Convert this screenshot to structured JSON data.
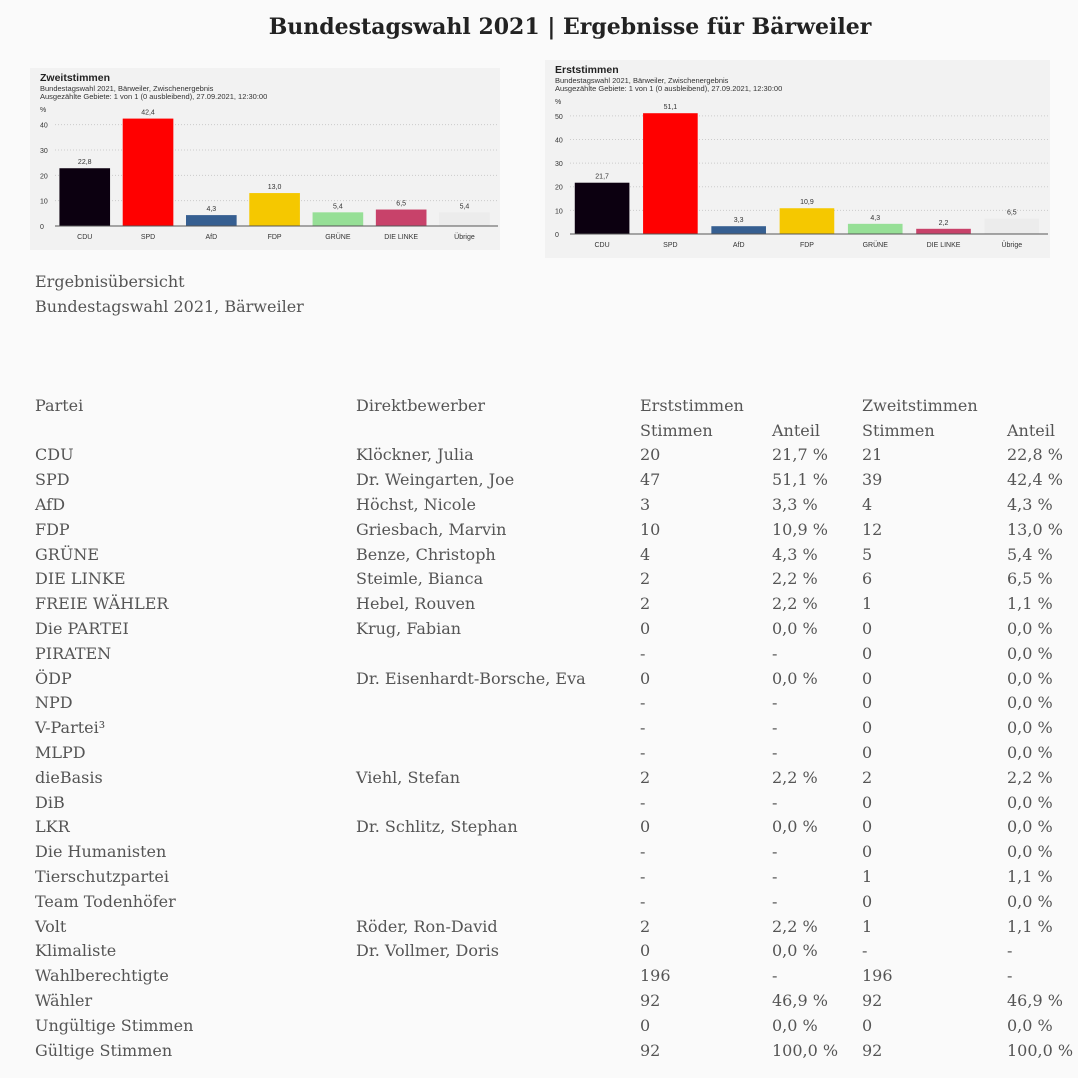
{
  "title": "Bundestagswahl 2021 | Ergebnisse für Bärweiler",
  "chart_data": [
    {
      "type": "bar",
      "title": "Zweitstimmen",
      "subtitle": "Bundestagswahl 2021, Bärweiler, Zwischenergebnis",
      "subtitle2": "Ausgezählte Gebiete: 1 von 1 (0 ausbleibend), 27.09.2021, 12:30:00",
      "ylabel": "%",
      "ylim": [
        0,
        45
      ],
      "yticks": [
        0,
        10,
        20,
        30,
        40
      ],
      "grid": true,
      "categories": [
        "CDU",
        "SPD",
        "AfD",
        "FDP",
        "GRÜNE",
        "DIE LINKE",
        "Übrige"
      ],
      "values": [
        22.8,
        42.4,
        4.3,
        13.0,
        5.4,
        6.5,
        5.4
      ],
      "labels": [
        "22,8",
        "42,4",
        "4,3",
        "13,0",
        "5,4",
        "6,5",
        "5,4"
      ],
      "colors": [
        "#0c0010",
        "#ff0000",
        "#365f91",
        "#f5c800",
        "#96df96",
        "#c8426a",
        "#ececec"
      ]
    },
    {
      "type": "bar",
      "title": "Erststimmen",
      "subtitle": "Bundestagswahl 2021, Bärweiler, Zwischenergebnis",
      "subtitle2": "Ausgezählte Gebiete: 1 von 1 (0 ausbleibend), 27.09.2021, 12:30:00",
      "ylabel": "%",
      "ylim": [
        0,
        55
      ],
      "yticks": [
        0,
        10,
        20,
        30,
        40,
        50
      ],
      "grid": true,
      "categories": [
        "CDU",
        "SPD",
        "AfD",
        "FDP",
        "GRÜNE",
        "DIE LINKE",
        "Übrige"
      ],
      "values": [
        21.7,
        51.1,
        3.3,
        10.9,
        4.3,
        2.2,
        6.5
      ],
      "labels": [
        "21,7",
        "51,1",
        "3,3",
        "10,9",
        "4,3",
        "2,2",
        "6,5"
      ],
      "colors": [
        "#0c0010",
        "#ff0000",
        "#365f91",
        "#f5c800",
        "#96df96",
        "#c8426a",
        "#ececec"
      ]
    }
  ],
  "overview": {
    "line1": "Ergebnisübersicht",
    "line2": "Bundestagswahl 2021, Bärweiler"
  },
  "table": {
    "header1": [
      "Partei",
      "Direktbewerber",
      "Erststimmen",
      "",
      "Zweitstimmen",
      ""
    ],
    "header2": [
      "",
      "",
      "Stimmen",
      "Anteil",
      "Stimmen",
      "Anteil"
    ],
    "rows": [
      [
        "CDU",
        "Klöckner, Julia",
        "20",
        "21,7 %",
        "21",
        "22,8 %"
      ],
      [
        "SPD",
        "Dr. Weingarten, Joe",
        "47",
        "51,1 %",
        "39",
        "42,4 %"
      ],
      [
        "AfD",
        "Höchst, Nicole",
        "3",
        "3,3 %",
        "4",
        "4,3 %"
      ],
      [
        "FDP",
        "Griesbach, Marvin",
        "10",
        "10,9 %",
        "12",
        "13,0 %"
      ],
      [
        "GRÜNE",
        "Benze, Christoph",
        "4",
        "4,3 %",
        "5",
        "5,4 %"
      ],
      [
        "DIE LINKE",
        "Steimle, Bianca",
        "2",
        "2,2 %",
        "6",
        "6,5 %"
      ],
      [
        "FREIE WÄHLER",
        "Hebel, Rouven",
        "2",
        "2,2 %",
        "1",
        "1,1 %"
      ],
      [
        "Die PARTEI",
        "Krug, Fabian",
        "0",
        "0,0 %",
        "0",
        "0,0 %"
      ],
      [
        "PIRATEN",
        "",
        "-",
        "-",
        "0",
        "0,0 %"
      ],
      [
        "ÖDP",
        "Dr. Eisenhardt-Borsche, Eva",
        "0",
        "0,0 %",
        "0",
        "0,0 %"
      ],
      [
        "NPD",
        "",
        "-",
        "-",
        "0",
        "0,0 %"
      ],
      [
        "V-Partei³",
        "",
        "-",
        "-",
        "0",
        "0,0 %"
      ],
      [
        "MLPD",
        "",
        "-",
        "-",
        "0",
        "0,0 %"
      ],
      [
        "dieBasis",
        "Viehl, Stefan",
        "2",
        "2,2 %",
        "2",
        "2,2 %"
      ],
      [
        "DiB",
        "",
        "-",
        "-",
        "0",
        "0,0 %"
      ],
      [
        "LKR",
        "Dr. Schlitz, Stephan",
        "0",
        "0,0 %",
        "0",
        "0,0 %"
      ],
      [
        "Die Humanisten",
        "",
        "-",
        "-",
        "0",
        "0,0 %"
      ],
      [
        "Tierschutzpartei",
        "",
        "-",
        "-",
        "1",
        "1,1 %"
      ],
      [
        "Team Todenhöfer",
        "",
        "-",
        "-",
        "0",
        "0,0 %"
      ],
      [
        "Volt",
        "Röder, Ron-David",
        "2",
        "2,2 %",
        "1",
        "1,1 %"
      ],
      [
        "Klimaliste",
        "Dr. Vollmer, Doris",
        "0",
        "0,0 %",
        "-",
        "-"
      ],
      [
        "Wahlberechtigte",
        "",
        "196",
        "-",
        "196",
        "-"
      ],
      [
        "Wähler",
        "",
        "92",
        "46,9 %",
        "92",
        "46,9 %"
      ],
      [
        "Ungültige Stimmen",
        "",
        "0",
        "0,0 %",
        "0",
        "0,0 %"
      ],
      [
        "Gültige Stimmen",
        "",
        "92",
        "100,0 %",
        "92",
        "100,0 %"
      ]
    ]
  }
}
